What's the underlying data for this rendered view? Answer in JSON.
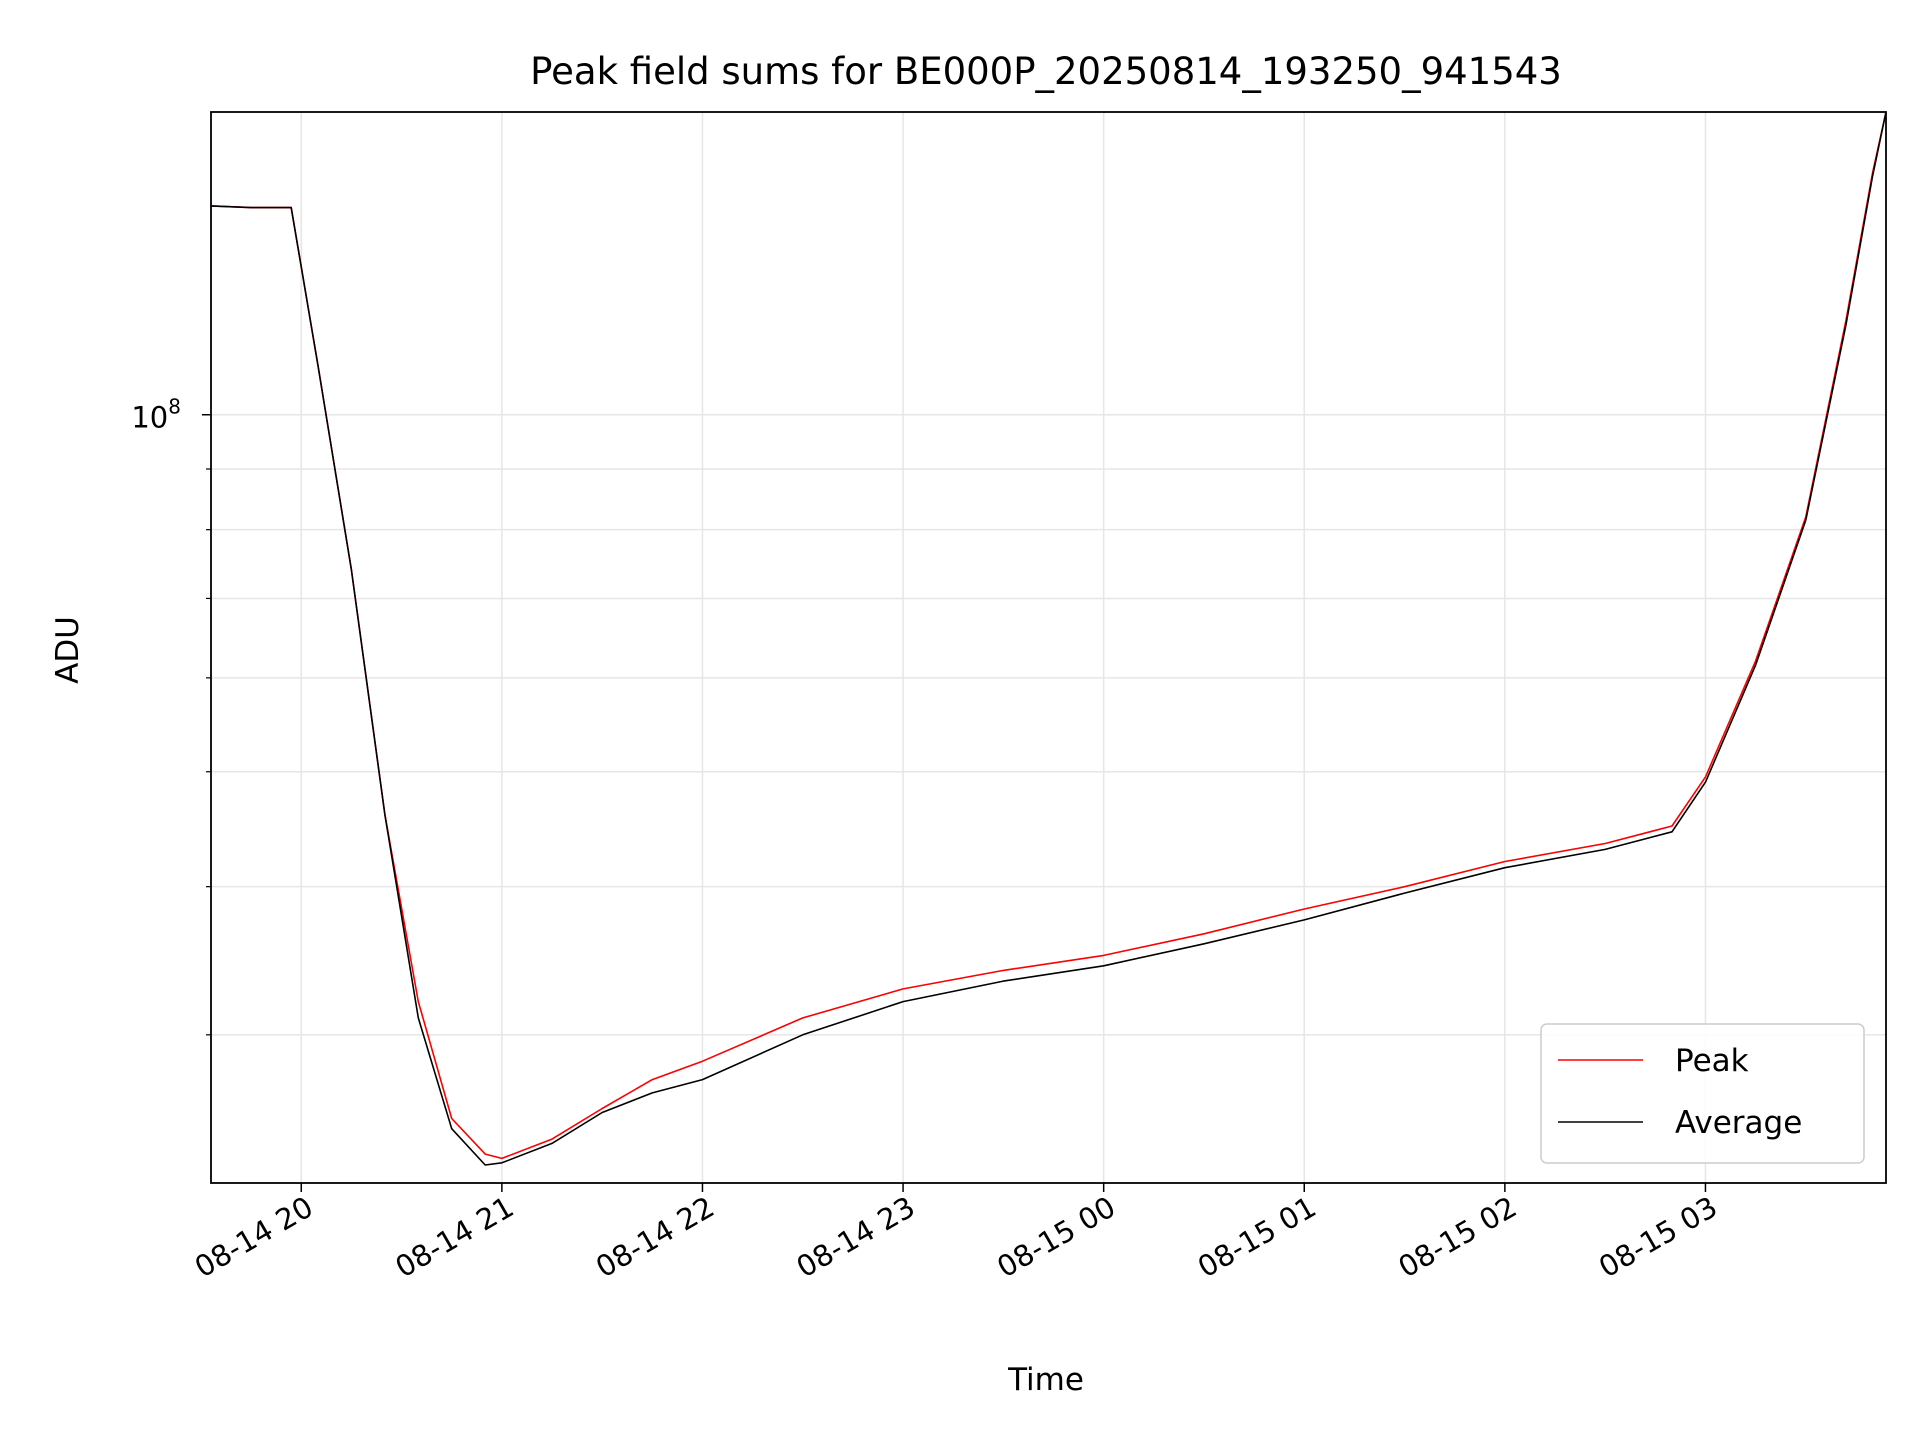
{
  "chart_data": {
    "type": "line",
    "title": "Peak field sums for BE000P_20250814_193250_941543",
    "xlabel": "Time",
    "ylabel": "ADU",
    "yscale": "log",
    "grid": true,
    "legend_placement": "lower-right",
    "x_ticks": [
      "08-14 20",
      "08-14 21",
      "08-14 22",
      "08-14 23",
      "08-15 00",
      "08-15 01",
      "08-15 02",
      "08-15 03"
    ],
    "y_tick_labels": [
      {
        "value": 100000000,
        "base": "10",
        "exp": "8"
      }
    ],
    "xlim": [
      "2025-08-14 19:33",
      "2025-08-15 03:54"
    ],
    "ylim": [
      22500000,
      180000000
    ],
    "series": [
      {
        "name": "Peak",
        "color": "#ff0000",
        "x": [
          "2025-08-14 19:33",
          "2025-08-14 19:45",
          "2025-08-14 19:57",
          "2025-08-14 20:05",
          "2025-08-14 20:15",
          "2025-08-14 20:25",
          "2025-08-14 20:35",
          "2025-08-14 20:45",
          "2025-08-14 20:55",
          "2025-08-14 21:00",
          "2025-08-14 21:15",
          "2025-08-14 21:30",
          "2025-08-14 21:45",
          "2025-08-14 22:00",
          "2025-08-14 22:30",
          "2025-08-14 23:00",
          "2025-08-14 23:30",
          "2025-08-15 00:00",
          "2025-08-15 00:30",
          "2025-08-15 01:00",
          "2025-08-15 01:30",
          "2025-08-15 02:00",
          "2025-08-15 02:30",
          "2025-08-15 02:50",
          "2025-08-15 03:00",
          "2025-08-15 03:15",
          "2025-08-15 03:30",
          "2025-08-15 03:42",
          "2025-08-15 03:50",
          "2025-08-15 03:54"
        ],
        "y": [
          150000000,
          149500000,
          149500000,
          110000000,
          74000000,
          46000000,
          32000000,
          25500000,
          23800000,
          23600000,
          24500000,
          26000000,
          27500000,
          28500000,
          31000000,
          32800000,
          34000000,
          35000000,
          36500000,
          38300000,
          40000000,
          42000000,
          43500000,
          45000000,
          49500000,
          62000000,
          82000000,
          120000000,
          160000000,
          180000000
        ]
      },
      {
        "name": "Average",
        "color": "#000000",
        "x": [
          "2025-08-14 19:33",
          "2025-08-14 19:45",
          "2025-08-14 19:57",
          "2025-08-14 20:05",
          "2025-08-14 20:15",
          "2025-08-14 20:25",
          "2025-08-14 20:35",
          "2025-08-14 20:45",
          "2025-08-14 20:55",
          "2025-08-14 21:00",
          "2025-08-14 21:15",
          "2025-08-14 21:30",
          "2025-08-14 21:45",
          "2025-08-14 22:00",
          "2025-08-14 22:30",
          "2025-08-14 23:00",
          "2025-08-14 23:30",
          "2025-08-15 00:00",
          "2025-08-15 00:30",
          "2025-08-15 01:00",
          "2025-08-15 01:30",
          "2025-08-15 02:00",
          "2025-08-15 02:30",
          "2025-08-15 02:50",
          "2025-08-15 03:00",
          "2025-08-15 03:15",
          "2025-08-15 03:30",
          "2025-08-15 03:42",
          "2025-08-15 03:50",
          "2025-08-15 03:54"
        ],
        "y": [
          150000000,
          149500000,
          149500000,
          110000000,
          74000000,
          46000000,
          31000000,
          25000000,
          23300000,
          23400000,
          24300000,
          25800000,
          26800000,
          27500000,
          30000000,
          32000000,
          33300000,
          34300000,
          35800000,
          37500000,
          39500000,
          41500000,
          43000000,
          44500000,
          49000000,
          61500000,
          81500000,
          119000000,
          159000000,
          180000000
        ]
      }
    ]
  }
}
